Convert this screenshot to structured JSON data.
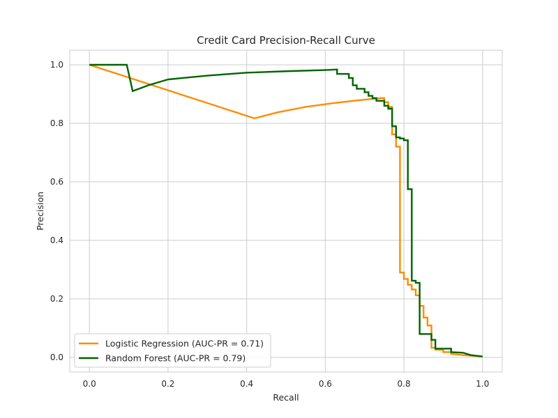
{
  "chart_data": {
    "type": "line",
    "title": "Credit Card Precision-Recall Curve",
    "xlabel": "Recall",
    "ylabel": "Precision",
    "xlim": [
      -0.05,
      1.05
    ],
    "ylim": [
      -0.05,
      1.05
    ],
    "xticks": [
      0.0,
      0.2,
      0.4,
      0.6,
      0.8,
      1.0
    ],
    "yticks": [
      0.0,
      0.2,
      0.4,
      0.6,
      0.8,
      1.0
    ],
    "xtick_labels": [
      "0.0",
      "0.2",
      "0.4",
      "0.6",
      "0.8",
      "1.0"
    ],
    "ytick_labels": [
      "0.0",
      "0.2",
      "0.4",
      "0.6",
      "0.8",
      "1.0"
    ],
    "grid": true,
    "legend_position": "lower-left",
    "series": [
      {
        "name": "Logistic Regression (AUC-PR = 0.71)",
        "color": "#ff8c00",
        "x": [
          0.0,
          0.42,
          0.48,
          0.55,
          0.62,
          0.68,
          0.74,
          0.75,
          0.75,
          0.76,
          0.76,
          0.77,
          0.77,
          0.78,
          0.78,
          0.79,
          0.79,
          0.8,
          0.8,
          0.81,
          0.81,
          0.82,
          0.82,
          0.83,
          0.83,
          0.84,
          0.84,
          0.85,
          0.85,
          0.86,
          0.86,
          0.87,
          0.87,
          0.88,
          0.88,
          0.9,
          0.9,
          0.92,
          0.92,
          0.95,
          1.0
        ],
        "y": [
          1.0,
          0.817,
          0.838,
          0.856,
          0.869,
          0.878,
          0.886,
          0.886,
          0.872,
          0.872,
          0.856,
          0.856,
          0.762,
          0.762,
          0.72,
          0.72,
          0.29,
          0.29,
          0.268,
          0.268,
          0.248,
          0.248,
          0.232,
          0.232,
          0.212,
          0.212,
          0.176,
          0.176,
          0.136,
          0.136,
          0.109,
          0.109,
          0.033,
          0.033,
          0.026,
          0.026,
          0.018,
          0.018,
          0.012,
          0.008,
          0.003
        ]
      },
      {
        "name": "Random Forest (AUC-PR = 0.79)",
        "color": "#006400",
        "x": [
          0.0,
          0.095,
          0.11,
          0.15,
          0.2,
          0.3,
          0.4,
          0.5,
          0.6,
          0.63,
          0.63,
          0.66,
          0.66,
          0.67,
          0.67,
          0.68,
          0.68,
          0.7,
          0.7,
          0.71,
          0.71,
          0.72,
          0.72,
          0.73,
          0.73,
          0.75,
          0.75,
          0.76,
          0.76,
          0.77,
          0.77,
          0.78,
          0.78,
          0.79,
          0.79,
          0.8,
          0.8,
          0.81,
          0.81,
          0.82,
          0.82,
          0.83,
          0.83,
          0.84,
          0.84,
          0.85,
          0.85,
          0.87,
          0.87,
          0.88,
          0.88,
          0.92,
          0.92,
          0.95,
          0.97,
          1.0
        ],
        "y": [
          1.0,
          1.0,
          0.91,
          0.93,
          0.95,
          0.963,
          0.973,
          0.978,
          0.982,
          0.984,
          0.969,
          0.969,
          0.955,
          0.955,
          0.93,
          0.93,
          0.918,
          0.918,
          0.906,
          0.906,
          0.894,
          0.894,
          0.886,
          0.886,
          0.877,
          0.877,
          0.86,
          0.86,
          0.85,
          0.85,
          0.79,
          0.79,
          0.752,
          0.752,
          0.748,
          0.748,
          0.742,
          0.742,
          0.575,
          0.575,
          0.262,
          0.262,
          0.255,
          0.255,
          0.08,
          0.08,
          0.08,
          0.08,
          0.06,
          0.06,
          0.03,
          0.03,
          0.018,
          0.016,
          0.008,
          0.003
        ]
      }
    ]
  }
}
